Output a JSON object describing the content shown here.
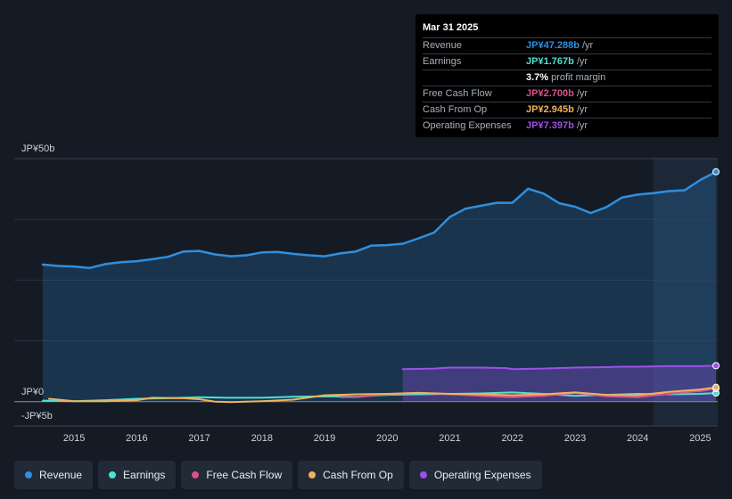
{
  "chart_data": {
    "type": "line",
    "currency_unit": "JP¥",
    "y_axis_labels": [
      "JP¥50b",
      "JP¥0",
      "-JP¥5b"
    ],
    "ylim": [
      -5,
      50
    ],
    "xlim": [
      2014.5,
      2025.25
    ],
    "x_ticks": [
      2015,
      2016,
      2017,
      2018,
      2019,
      2020,
      2021,
      2022,
      2023,
      2024,
      2025
    ],
    "x_tick_labels": [
      "2015",
      "2016",
      "2017",
      "2018",
      "2019",
      "2020",
      "2021",
      "2022",
      "2023",
      "2024",
      "2025"
    ],
    "highlight_from": 2024.25,
    "series": [
      {
        "name": "Revenue",
        "color": "#2f8fdf",
        "fill": true,
        "points": [
          [
            2014.5,
            28.2
          ],
          [
            2014.75,
            27.9
          ],
          [
            2015.0,
            27.8
          ],
          [
            2015.25,
            27.5
          ],
          [
            2015.5,
            28.3
          ],
          [
            2015.75,
            28.7
          ],
          [
            2016.0,
            28.9
          ],
          [
            2016.25,
            29.3
          ],
          [
            2016.5,
            29.8
          ],
          [
            2016.75,
            30.9
          ],
          [
            2017.0,
            31.0
          ],
          [
            2017.25,
            30.3
          ],
          [
            2017.5,
            29.9
          ],
          [
            2017.75,
            30.1
          ],
          [
            2018.0,
            30.7
          ],
          [
            2018.25,
            30.8
          ],
          [
            2018.5,
            30.4
          ],
          [
            2018.75,
            30.1
          ],
          [
            2019.0,
            29.9
          ],
          [
            2019.25,
            30.5
          ],
          [
            2019.5,
            30.9
          ],
          [
            2019.75,
            32.1
          ],
          [
            2020.0,
            32.2
          ],
          [
            2020.25,
            32.5
          ],
          [
            2020.5,
            33.6
          ],
          [
            2020.75,
            34.8
          ],
          [
            2021.0,
            38.0
          ],
          [
            2021.25,
            39.7
          ],
          [
            2021.5,
            40.3
          ],
          [
            2021.75,
            40.9
          ],
          [
            2022.0,
            40.9
          ],
          [
            2022.25,
            43.8
          ],
          [
            2022.5,
            42.8
          ],
          [
            2022.75,
            40.8
          ],
          [
            2023.0,
            40.1
          ],
          [
            2023.25,
            38.8
          ],
          [
            2023.5,
            40.0
          ],
          [
            2023.75,
            42.0
          ],
          [
            2024.0,
            42.6
          ],
          [
            2024.25,
            42.9
          ],
          [
            2024.5,
            43.3
          ],
          [
            2024.75,
            43.5
          ],
          [
            2025.0,
            45.6
          ],
          [
            2025.25,
            47.288
          ]
        ]
      },
      {
        "name": "Earnings",
        "color": "#4fe0d0",
        "fill": false,
        "points": [
          [
            2014.5,
            0.2
          ],
          [
            2015.0,
            0.1
          ],
          [
            2015.5,
            0.3
          ],
          [
            2016.0,
            0.6
          ],
          [
            2016.5,
            0.7
          ],
          [
            2017.0,
            0.9
          ],
          [
            2017.5,
            0.8
          ],
          [
            2018.0,
            0.8
          ],
          [
            2018.5,
            1.0
          ],
          [
            2019.0,
            1.1
          ],
          [
            2019.5,
            1.0
          ],
          [
            2020.0,
            1.4
          ],
          [
            2020.5,
            1.5
          ],
          [
            2021.0,
            1.6
          ],
          [
            2021.5,
            1.7
          ],
          [
            2022.0,
            1.9
          ],
          [
            2022.5,
            1.6
          ],
          [
            2023.0,
            1.2
          ],
          [
            2023.5,
            1.4
          ],
          [
            2024.0,
            1.6
          ],
          [
            2024.5,
            1.5
          ],
          [
            2025.0,
            1.6
          ],
          [
            2025.25,
            1.767
          ]
        ]
      },
      {
        "name": "Free Cash Flow",
        "color": "#d9538a",
        "fill": false,
        "points": [
          [
            2019.25,
            0.9
          ],
          [
            2019.5,
            0.9
          ],
          [
            2020.0,
            1.5
          ],
          [
            2020.5,
            1.8
          ],
          [
            2021.0,
            1.5
          ],
          [
            2021.5,
            1.2
          ],
          [
            2022.0,
            0.9
          ],
          [
            2022.5,
            1.2
          ],
          [
            2023.0,
            1.8
          ],
          [
            2023.5,
            1.1
          ],
          [
            2024.0,
            0.9
          ],
          [
            2024.5,
            1.6
          ],
          [
            2025.0,
            2.2
          ],
          [
            2025.25,
            2.7
          ]
        ]
      },
      {
        "name": "Cash From Op",
        "color": "#f0b25b",
        "fill": false,
        "points": [
          [
            2014.6,
            0.6
          ],
          [
            2015.0,
            0.1
          ],
          [
            2015.5,
            0.1
          ],
          [
            2016.0,
            0.3
          ],
          [
            2016.25,
            0.8
          ],
          [
            2016.75,
            0.7
          ],
          [
            2017.0,
            0.5
          ],
          [
            2017.25,
            0.0
          ],
          [
            2017.5,
            -0.1
          ],
          [
            2018.0,
            0.1
          ],
          [
            2018.5,
            0.4
          ],
          [
            2019.0,
            1.3
          ],
          [
            2019.5,
            1.5
          ],
          [
            2020.0,
            1.6
          ],
          [
            2020.5,
            1.8
          ],
          [
            2021.0,
            1.6
          ],
          [
            2021.5,
            1.5
          ],
          [
            2022.0,
            1.3
          ],
          [
            2022.5,
            1.5
          ],
          [
            2023.0,
            1.9
          ],
          [
            2023.5,
            1.4
          ],
          [
            2024.0,
            1.3
          ],
          [
            2024.5,
            2.0
          ],
          [
            2025.0,
            2.5
          ],
          [
            2025.25,
            2.945
          ]
        ]
      },
      {
        "name": "Operating Expenses",
        "color": "#9d4fe8",
        "fill": true,
        "points": [
          [
            2020.25,
            6.7
          ],
          [
            2020.75,
            6.8
          ],
          [
            2021.0,
            7.0
          ],
          [
            2021.5,
            7.0
          ],
          [
            2021.9,
            6.9
          ],
          [
            2022.0,
            6.7
          ],
          [
            2022.5,
            6.8
          ],
          [
            2023.0,
            7.0
          ],
          [
            2023.5,
            7.1
          ],
          [
            2023.75,
            7.2
          ],
          [
            2024.0,
            7.2
          ],
          [
            2024.5,
            7.3
          ],
          [
            2025.0,
            7.3
          ],
          [
            2025.25,
            7.397
          ]
        ]
      }
    ]
  },
  "tooltip": {
    "date": "Mar 31 2025",
    "rows": [
      {
        "label": "Revenue",
        "value": "JP¥47.288b",
        "unit": "/yr",
        "color": "#2f8fdf"
      },
      {
        "label": "Earnings",
        "value": "JP¥1.767b",
        "unit": "/yr",
        "color": "#4fe0d0"
      },
      {
        "label": "",
        "value": "3.7%",
        "unit": "profit margin",
        "color": "#ffffff"
      },
      {
        "label": "Free Cash Flow",
        "value": "JP¥2.700b",
        "unit": "/yr",
        "color": "#d9538a"
      },
      {
        "label": "Cash From Op",
        "value": "JP¥2.945b",
        "unit": "/yr",
        "color": "#f0b25b"
      },
      {
        "label": "Operating Expenses",
        "value": "JP¥7.397b",
        "unit": "/yr",
        "color": "#9d4fe8"
      }
    ]
  },
  "legend": [
    {
      "label": "Revenue",
      "color": "#2f8fdf"
    },
    {
      "label": "Earnings",
      "color": "#4fe0d0"
    },
    {
      "label": "Free Cash Flow",
      "color": "#d9538a"
    },
    {
      "label": "Cash From Op",
      "color": "#f0b25b"
    },
    {
      "label": "Operating Expenses",
      "color": "#9d4fe8"
    }
  ]
}
